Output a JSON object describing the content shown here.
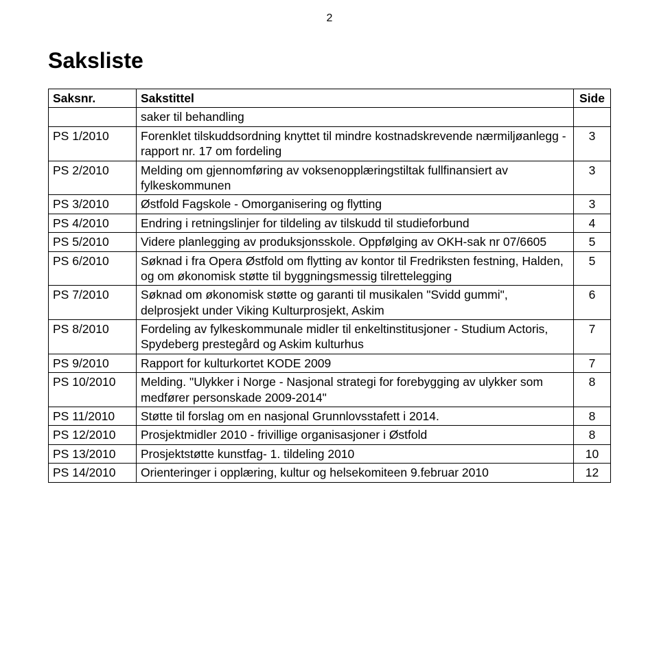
{
  "page_number": "2",
  "title": "Saksliste",
  "headers": {
    "saksnr": "Saksnr.",
    "sakstittel": "Sakstittel",
    "side": "Side"
  },
  "preRow": {
    "saksnr": "",
    "tittel": "saker til behandling",
    "side": ""
  },
  "rows": [
    {
      "saksnr": "PS 1/2010",
      "tittel": "Forenklet tilskuddsordning knyttet til mindre kostnadskrevende nærmiljøanlegg - rapport nr. 17 om fordeling",
      "side": "3"
    },
    {
      "saksnr": "PS 2/2010",
      "tittel": "Melding om gjennomføring av voksenopplæringstiltak fullfinansiert av fylkeskommunen",
      "side": "3"
    },
    {
      "saksnr": "PS 3/2010",
      "tittel": "Østfold Fagskole - Omorganisering og flytting",
      "side": "3"
    },
    {
      "saksnr": "PS 4/2010",
      "tittel": "Endring i retningslinjer for tildeling av tilskudd til studieforbund",
      "side": "4"
    },
    {
      "saksnr": "PS 5/2010",
      "tittel": "Videre planlegging av produksjonsskole. Oppfølging av OKH-sak nr 07/6605",
      "side": "5"
    },
    {
      "saksnr": "PS 6/2010",
      "tittel": "Søknad i fra Opera Østfold om flytting av kontor til Fredriksten festning, Halden, og om økonomisk støtte til byggningsmessig tilrettelegging",
      "side": "5"
    },
    {
      "saksnr": "PS 7/2010",
      "tittel": "Søknad om økonomisk støtte og garanti til musikalen \"Svidd gummi\", delprosjekt under Viking Kulturprosjekt, Askim",
      "side": "6"
    },
    {
      "saksnr": "PS 8/2010",
      "tittel": "Fordeling av fylkeskommunale midler til enkeltinstitusjoner - Studium Actoris, Spydeberg prestegård og Askim kulturhus",
      "side": "7"
    },
    {
      "saksnr": "PS 9/2010",
      "tittel": "Rapport for kulturkortet KODE 2009",
      "side": "7"
    },
    {
      "saksnr": "PS 10/2010",
      "tittel": "Melding. \"Ulykker i Norge - Nasjonal strategi for forebygging av ulykker som medfører personskade 2009-2014\"",
      "side": "8"
    },
    {
      "saksnr": "PS 11/2010",
      "tittel": "Støtte til forslag om en nasjonal Grunnlovsstafett i 2014.",
      "side": "8"
    },
    {
      "saksnr": "PS 12/2010",
      "tittel": "Prosjektmidler 2010  - frivillige organisasjoner i Østfold",
      "side": "8"
    },
    {
      "saksnr": "PS 13/2010",
      "tittel": "Prosjektstøtte kunstfag- 1. tildeling 2010",
      "side": "10"
    },
    {
      "saksnr": "PS 14/2010",
      "tittel": "Orienteringer i opplæring, kultur og helsekomiteen 9.februar 2010",
      "side": "12"
    }
  ]
}
